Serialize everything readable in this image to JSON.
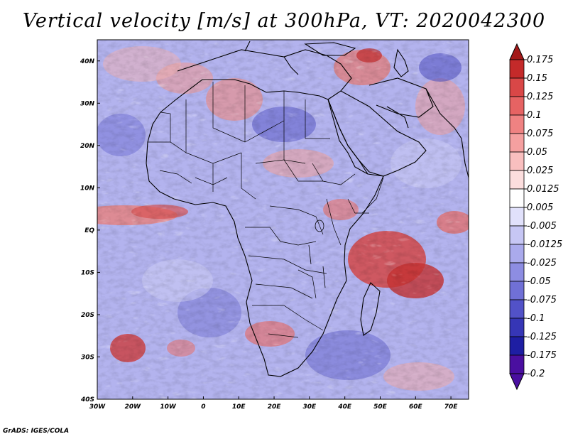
{
  "title": "Vertical velocity [m/s] at 300hPa, VT: 2020042300",
  "footer": "GrADS: IGES/COLA",
  "map": {
    "lat_labels": [
      "40N",
      "30N",
      "20N",
      "10N",
      "EQ",
      "10S",
      "20S",
      "30S",
      "40S"
    ],
    "lon_labels": [
      "30W",
      "20W",
      "10W",
      "0",
      "10E",
      "20E",
      "30E",
      "40E",
      "50E",
      "60E",
      "70E"
    ],
    "lat_range": [
      -40,
      45
    ],
    "lon_range": [
      -30,
      75
    ]
  },
  "colorbar": {
    "levels": [
      "0.175",
      "0.15",
      "0.125",
      "0.1",
      "0.075",
      "0.05",
      "0.025",
      "0.0125",
      "0.005",
      "-0.005",
      "-0.0125",
      "-0.025",
      "-0.05",
      "-0.075",
      "-0.1",
      "-0.125",
      "-0.175",
      "-0.2"
    ],
    "colors": [
      "#a31818",
      "#c42a2a",
      "#d94747",
      "#e66363",
      "#ef8282",
      "#f5a0a0",
      "#f9bfbf",
      "#fcdede",
      "#ffffff",
      "#e1e1fb",
      "#c6c6f4",
      "#aaaaec",
      "#8d8de2",
      "#7070d6",
      "#5252c8",
      "#3636b6",
      "#1e1ea3",
      "#4a0fa0",
      "#1c1c8a"
    ]
  }
}
